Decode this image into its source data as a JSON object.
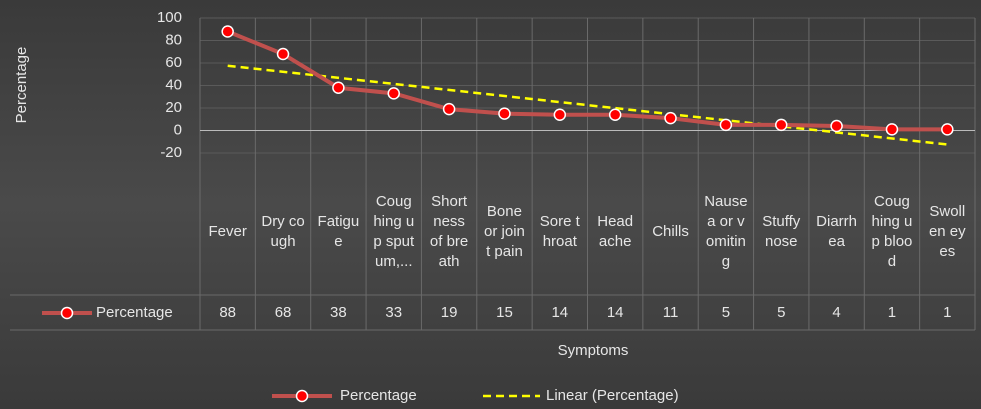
{
  "chart_data": {
    "type": "line",
    "y_label": "Percentage",
    "x_label": "Symptoms",
    "categories": [
      "Fever",
      "Dry cough",
      "Fatigue",
      "Coughing up sputum,...",
      "Shortness of breath",
      "Bone or joint pain",
      "Sore throat",
      "Headache",
      "Chills",
      "Nausea or vomiting",
      "Stuffy nose",
      "Diarrhea",
      "Coughing up blood",
      "Swollen eyes"
    ],
    "series": [
      {
        "name": "Percentage",
        "color": "#c0504d",
        "marker_color": "#ff0000",
        "values": [
          88,
          68,
          38,
          33,
          19,
          15,
          14,
          14,
          11,
          5,
          5,
          4,
          1,
          1
        ]
      }
    ],
    "trendline": {
      "label": "Linear (Percentage)",
      "color": "#ffff00"
    },
    "ylim": [
      -20,
      100
    ],
    "yticks": [
      -20,
      0,
      20,
      40,
      60,
      80,
      100
    ],
    "grid": true
  }
}
